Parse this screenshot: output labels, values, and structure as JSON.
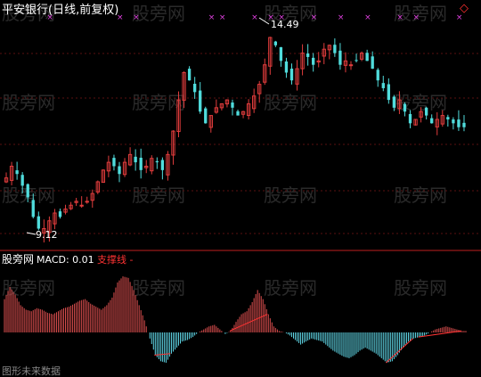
{
  "title": "平安银行(日线,前复权)",
  "watermark": "股旁网",
  "corner_marker": "◇",
  "price_chart": {
    "high_label": "14.49",
    "low_label": "9.12",
    "up_color": "#e03c3c",
    "down_color": "#50dcdc",
    "marker_color": "#e040e0"
  },
  "indicator": {
    "source_label": "股旁网",
    "name": "MACD: 0.01",
    "line_label": "支撑线 -",
    "line_color": "#ff3333"
  },
  "footer_text": "图形未来数据",
  "chart_data": [
    {
      "type": "candlestick",
      "title": "平安银行(日线,前复权)",
      "annotations": [
        {
          "label": "14.49",
          "type": "max"
        },
        {
          "label": "9.12",
          "type": "min"
        }
      ],
      "closes": [
        10.6,
        10.9,
        10.7,
        10.4,
        10.1,
        9.6,
        9.3,
        9.3,
        9.5,
        9.7,
        9.6,
        9.8,
        9.9,
        10.0,
        9.9,
        10.0,
        10.2,
        10.5,
        10.8,
        11.0,
        10.9,
        10.7,
        11.0,
        11.2,
        11.0,
        10.8,
        10.9,
        11.1,
        11.0,
        10.8,
        11.2,
        11.8,
        12.6,
        13.3,
        13.1,
        12.8,
        12.3,
        12.0,
        12.2,
        12.4,
        12.5,
        12.6,
        12.4,
        12.2,
        12.3,
        12.5,
        12.7,
        13.0,
        13.5,
        14.2,
        14.0,
        13.6,
        13.3,
        13.1,
        13.4,
        13.8,
        13.7,
        13.5,
        13.6,
        13.9,
        14.0,
        13.8,
        13.5,
        13.6,
        13.5,
        13.6,
        13.8,
        13.6,
        13.4,
        13.1,
        12.9,
        12.6,
        12.4,
        12.6,
        12.3,
        12.0,
        12.1,
        12.3,
        12.2,
        12.0,
        12.1,
        12.2,
        12.1,
        12.0,
        11.9,
        11.9
      ],
      "macd": [
        0.22,
        0.3,
        0.25,
        0.18,
        0.15,
        0.14,
        0.16,
        0.15,
        0.13,
        0.12,
        0.14,
        0.16,
        0.17,
        0.19,
        0.21,
        0.22,
        0.19,
        0.17,
        0.15,
        0.18,
        0.23,
        0.33,
        0.37,
        0.36,
        0.28,
        0.18,
        0.08,
        -0.04,
        -0.15,
        -0.19,
        -0.2,
        -0.14,
        -0.1,
        -0.06,
        -0.05,
        -0.03,
        0.0,
        0.02,
        0.04,
        0.05,
        0.02,
        -0.01,
        0.01,
        0.07,
        0.12,
        0.14,
        0.2,
        0.28,
        0.22,
        0.12,
        0.04,
        0.01,
        0.0,
        -0.02,
        -0.05,
        -0.08,
        -0.06,
        -0.04,
        -0.05,
        -0.06,
        -0.09,
        -0.12,
        -0.14,
        -0.16,
        -0.17,
        -0.15,
        -0.12,
        -0.1,
        -0.12,
        -0.14,
        -0.17,
        -0.2,
        -0.19,
        -0.15,
        -0.1,
        -0.06,
        -0.04,
        -0.03,
        -0.02,
        0.0,
        0.02,
        0.03,
        0.04,
        0.03,
        0.02,
        0.01
      ]
    }
  ]
}
